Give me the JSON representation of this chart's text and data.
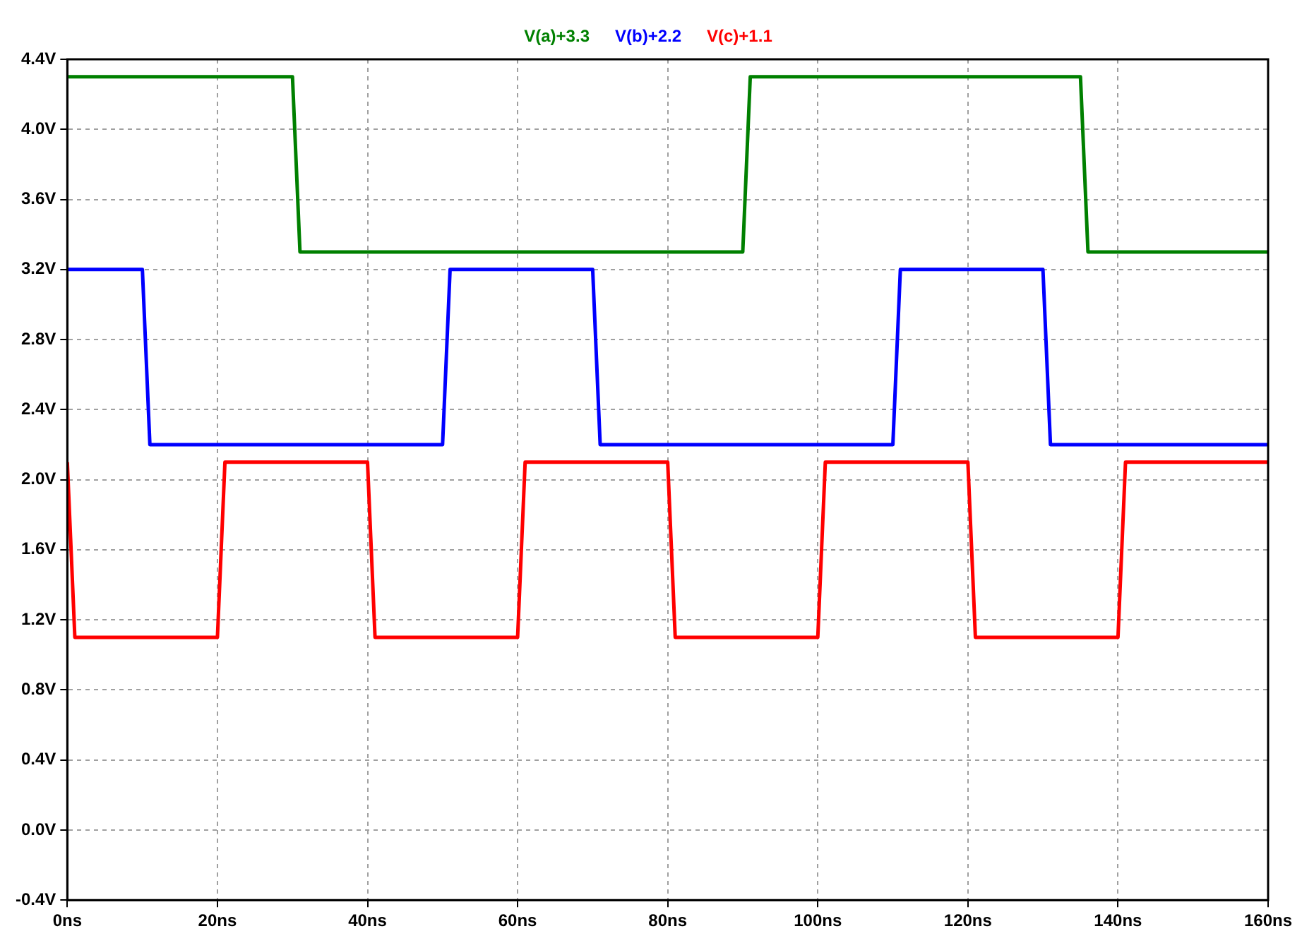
{
  "chart_data": {
    "type": "line",
    "legend": "top",
    "grid": true,
    "marker": "none",
    "xlim": [
      0,
      160
    ],
    "xticks": [
      {
        "value": 0,
        "label": "0ns"
      },
      {
        "value": 20,
        "label": "20ns"
      },
      {
        "value": 40,
        "label": "40ns"
      },
      {
        "value": 60,
        "label": "60ns"
      },
      {
        "value": 80,
        "label": "80ns"
      },
      {
        "value": 100,
        "label": "100ns"
      },
      {
        "value": 120,
        "label": "120ns"
      },
      {
        "value": 140,
        "label": "140ns"
      },
      {
        "value": 160,
        "label": "160ns"
      }
    ],
    "ylim": [
      -0.4,
      4.4
    ],
    "yticks": [
      {
        "value": -0.4,
        "label": "-0.4V"
      },
      {
        "value": 0,
        "label": "0.0V"
      },
      {
        "value": 0.4,
        "label": "0.4V"
      },
      {
        "value": 0.8,
        "label": "0.8V"
      },
      {
        "value": 1.2,
        "label": "1.2V"
      },
      {
        "value": 1.6,
        "label": "1.6V"
      },
      {
        "value": 2,
        "label": "2.0V"
      },
      {
        "value": 2.4,
        "label": "2.4V"
      },
      {
        "value": 2.8,
        "label": "2.8V"
      },
      {
        "value": 3.2,
        "label": "3.2V"
      },
      {
        "value": 3.6,
        "label": "3.6V"
      },
      {
        "value": 4,
        "label": "4.0V"
      },
      {
        "value": 4.4,
        "label": "4.4V"
      }
    ],
    "series": [
      {
        "name": "V(a)+3.3",
        "color": "#008000",
        "x": [
          0,
          30,
          31,
          90,
          91,
          135,
          136,
          160
        ],
        "values": [
          4.3,
          4.3,
          3.3,
          3.3,
          4.3,
          4.3,
          3.3,
          3.3
        ]
      },
      {
        "name": "V(b)+2.2",
        "color": "#0000ff",
        "x": [
          0,
          10,
          11,
          50,
          51,
          70,
          71,
          110,
          111,
          130,
          131,
          160
        ],
        "values": [
          3.2,
          3.2,
          2.2,
          2.2,
          3.2,
          3.2,
          2.2,
          2.2,
          3.2,
          3.2,
          2.2,
          2.2
        ]
      },
      {
        "name": "V(c)+1.1",
        "color": "#ff0000",
        "x": [
          0,
          1,
          20,
          21,
          40,
          41,
          60,
          61,
          80,
          81,
          100,
          101,
          120,
          121,
          140,
          141,
          160
        ],
        "values": [
          2.1,
          1.1,
          1.1,
          2.1,
          2.1,
          1.1,
          1.1,
          2.1,
          2.1,
          1.1,
          1.1,
          2.1,
          2.1,
          1.1,
          1.1,
          2.1,
          2.1
        ]
      }
    ]
  }
}
